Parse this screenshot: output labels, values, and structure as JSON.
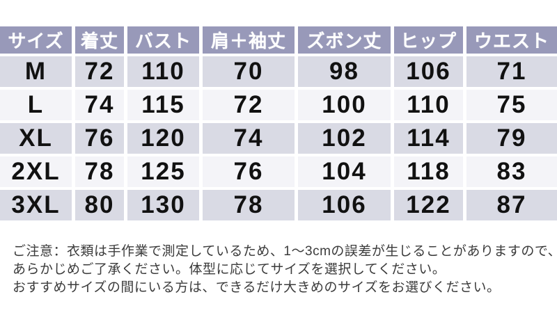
{
  "size_chart": {
    "headers": [
      "サイズ",
      "着丈",
      "バスト",
      "肩＋袖丈",
      "ズボン丈",
      "ヒップ",
      "ウエスト"
    ],
    "rows": [
      {
        "size": "M",
        "values": [
          "72",
          "110",
          "70",
          "98",
          "106",
          "71"
        ]
      },
      {
        "size": "L",
        "values": [
          "74",
          "115",
          "72",
          "100",
          "110",
          "75"
        ]
      },
      {
        "size": "XL",
        "values": [
          "76",
          "120",
          "74",
          "102",
          "114",
          "79"
        ]
      },
      {
        "size": "2XL",
        "values": [
          "78",
          "125",
          "76",
          "104",
          "118",
          "83"
        ]
      },
      {
        "size": "3XL",
        "values": [
          "80",
          "130",
          "78",
          "106",
          "122",
          "87"
        ]
      }
    ]
  },
  "notes": {
    "line1": "ご注意：衣類は手作業で測定しているため、1～3cmの誤差が生じることがありますので、",
    "line2": "あらかじめご了承ください。体型に応じてサイズを選択してください。",
    "line3": "おすすめサイズの間にいる方は、できるだけ大きめのサイズをお選びください。"
  },
  "colors": {
    "header_bg": "#9899b9",
    "header_text": "#ffffff",
    "row_alt_a": "#d9dae4",
    "row_alt_b": "#f4f4f8",
    "cell_text": "#111111",
    "note_text": "#3b3b3b"
  }
}
